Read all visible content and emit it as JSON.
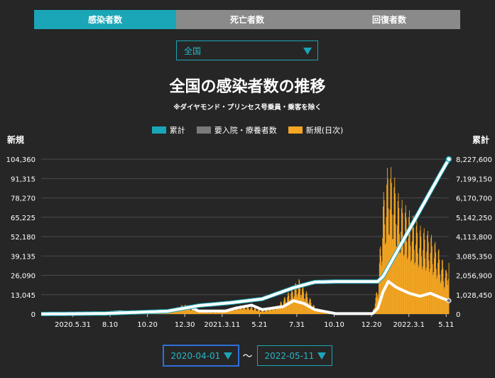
{
  "tabs": [
    {
      "label": "感染者数",
      "active": true
    },
    {
      "label": "死亡者数",
      "active": false
    },
    {
      "label": "回復者数",
      "active": false
    }
  ],
  "region_select": {
    "value": "全国"
  },
  "date_range": {
    "start": "2020-04-01",
    "separator": "〜",
    "end": "2022-05-11"
  },
  "colors": {
    "cumulative": "#1aa6b7",
    "hospitalized": "#7a7a7a",
    "daily": "#f5a623",
    "accent": "#1aa6b7"
  },
  "chart_data": {
    "type": "bar+line",
    "title": "全国の感染者数の推移",
    "subtitle": "※ダイヤモンド・プリンセス号乗員・乗客を除く",
    "left_axis_label": "新規",
    "right_axis_label": "累計",
    "legend": [
      "累計",
      "要入院・療養者数",
      "新規(日次)"
    ],
    "x_tick_labels": [
      "2020.5.31",
      "8.10",
      "10.20",
      "12.30",
      "2021.3.11",
      "5.21",
      "7.31",
      "10.10",
      "12.20",
      "2022.3.1",
      "5.11"
    ],
    "left_ticks": [
      "104,360",
      "91,315",
      "78,270",
      "65,225",
      "52,180",
      "39,135",
      "26,090",
      "13,045",
      "0"
    ],
    "right_ticks": [
      "8,227,600",
      "7,199,150",
      "6,170,700",
      "5,142,250",
      "4,113,800",
      "3,085,350",
      "2,056,900",
      "1,028,450",
      "0"
    ],
    "left_ylim": [
      0,
      104360
    ],
    "right_ylim": [
      0,
      8227600
    ],
    "legend_placement": "top-center",
    "grid": true,
    "series": [
      {
        "name": "新規(日次)",
        "axis": "left",
        "kind": "bar",
        "points": [
          [
            0,
            0
          ],
          [
            40,
            600
          ],
          [
            80,
            1500
          ],
          [
            100,
            600
          ],
          [
            120,
            1200
          ],
          [
            150,
            2000
          ],
          [
            170,
            1700
          ],
          [
            200,
            1000
          ],
          [
            230,
            2500
          ],
          [
            260,
            4000
          ],
          [
            270,
            7000
          ],
          [
            285,
            4500
          ],
          [
            300,
            2500
          ],
          [
            330,
            1500
          ],
          [
            360,
            4000
          ],
          [
            380,
            6000
          ],
          [
            400,
            5000
          ],
          [
            420,
            2500
          ],
          [
            450,
            6000
          ],
          [
            470,
            15000
          ],
          [
            490,
            24000
          ],
          [
            505,
            15000
          ],
          [
            520,
            5000
          ],
          [
            540,
            800
          ],
          [
            580,
            300
          ],
          [
            620,
            200
          ],
          [
            630,
            1000
          ],
          [
            640,
            20000
          ],
          [
            650,
            80000
          ],
          [
            660,
            103000
          ],
          [
            670,
            95000
          ],
          [
            680,
            80000
          ],
          [
            690,
            75000
          ],
          [
            700,
            70000
          ],
          [
            720,
            60000
          ],
          [
            740,
            55000
          ],
          [
            755,
            45000
          ],
          [
            770,
            30000
          ],
          [
            775,
            45000
          ]
        ]
      },
      {
        "name": "累計",
        "axis": "right",
        "kind": "line",
        "points": [
          [
            0,
            2000
          ],
          [
            120,
            30000
          ],
          [
            240,
            150000
          ],
          [
            300,
            450000
          ],
          [
            360,
            600000
          ],
          [
            420,
            800000
          ],
          [
            480,
            1400000
          ],
          [
            520,
            1700000
          ],
          [
            560,
            1725000
          ],
          [
            640,
            1730000
          ],
          [
            650,
            2000000
          ],
          [
            680,
            3500000
          ],
          [
            700,
            4500000
          ],
          [
            720,
            5500000
          ],
          [
            740,
            6500000
          ],
          [
            760,
            7500000
          ],
          [
            775,
            8227600
          ]
        ]
      },
      {
        "name": "要入院・療養者数",
        "axis": "left",
        "kind": "line",
        "points": [
          [
            0,
            0
          ],
          [
            40,
            300
          ],
          [
            80,
            600
          ],
          [
            110,
            400
          ],
          [
            150,
            1500
          ],
          [
            200,
            1000
          ],
          [
            230,
            1500
          ],
          [
            280,
            5000
          ],
          [
            300,
            2000
          ],
          [
            350,
            2000
          ],
          [
            370,
            4000
          ],
          [
            400,
            6000
          ],
          [
            420,
            3000
          ],
          [
            460,
            5000
          ],
          [
            480,
            9000
          ],
          [
            500,
            7000
          ],
          [
            520,
            3000
          ],
          [
            560,
            300
          ],
          [
            630,
            300
          ],
          [
            640,
            4000
          ],
          [
            650,
            15000
          ],
          [
            660,
            22000
          ],
          [
            675,
            18000
          ],
          [
            700,
            14000
          ],
          [
            720,
            12000
          ],
          [
            740,
            14000
          ],
          [
            760,
            11000
          ],
          [
            775,
            9000
          ]
        ]
      }
    ]
  }
}
